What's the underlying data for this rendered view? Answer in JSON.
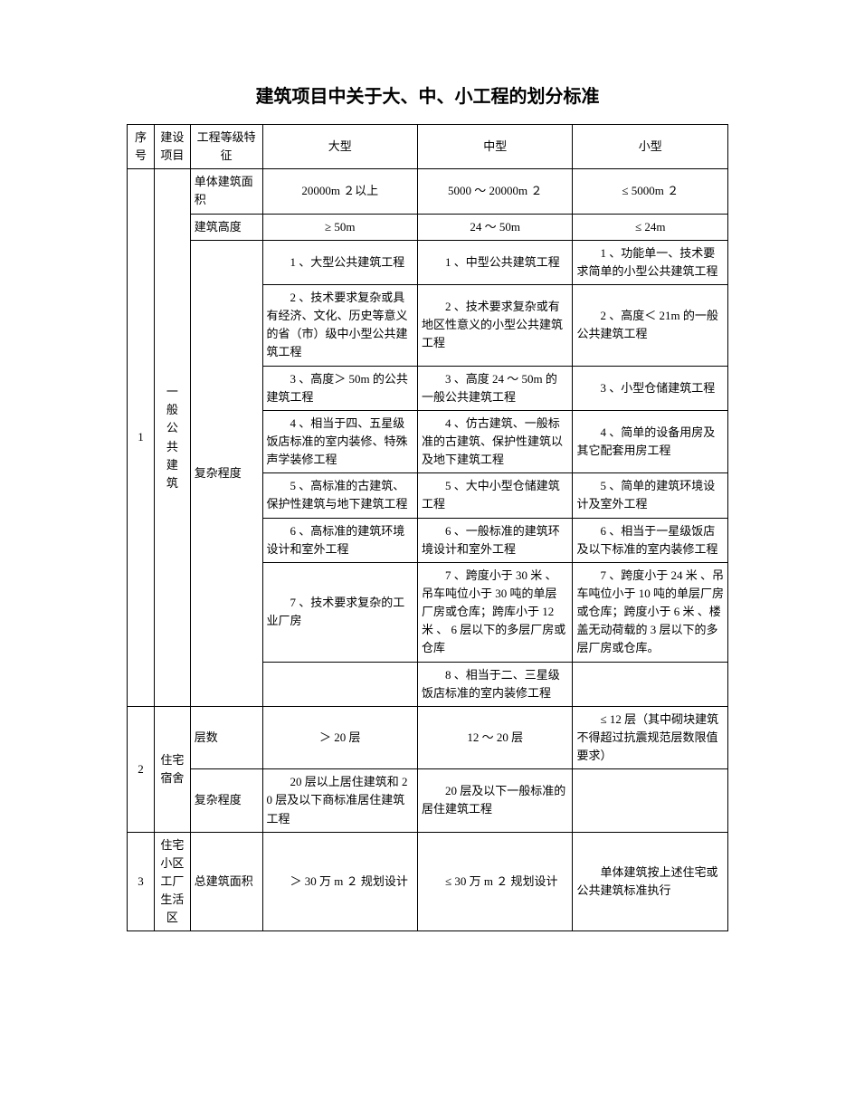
{
  "title": "建筑项目中关于大、中、小工程的划分标准",
  "colors": {
    "text": "#000000",
    "border": "#000000",
    "bg": "#ffffff"
  },
  "header": {
    "seq": "序号",
    "project": "建设项目",
    "feature": "工程等级特征",
    "large": "大型",
    "medium": "中型",
    "small": "小型"
  },
  "rows": [
    {
      "seq": "1",
      "project": "一\n般\n公\n共\n建\n筑",
      "feature": "单体建筑面积",
      "large": "20000m ２以上",
      "medium": "5000 ～ 20000m ２",
      "small": "≤ 5000m ２"
    },
    {
      "feature": "建筑高度",
      "large": "≥ 50m",
      "medium": "24 ～ 50m",
      "small": "≤ 24m"
    },
    {
      "feature": "复杂程度",
      "large": "　　1 、大型公共建筑工程",
      "medium": "　　1 、中型公共建筑工程",
      "small": "　　1 、功能单一、技术要求简单的小型公共建筑工程"
    },
    {
      "large": "　　2 、技术要求复杂或具有经济、文化、历史等意义的省（市）级中小型公共建筑工程",
      "medium": "　　2 、技术要求复杂或有地区性意义的小型公共建筑工程",
      "small": "　　2 、高度＜ 21m 的一般公共建筑工程"
    },
    {
      "large": "　　3 、高度＞ 50m 的公共建筑工程",
      "medium": "　　3 、高度 24 ～ 50m 的一般公共建筑工程",
      "small": "　　3 、小型仓储建筑工程"
    },
    {
      "large": "　　4 、相当于四、五星级饭店标准的室内装修、特殊声学装修工程",
      "medium": "　　4 、仿古建筑、一般标准的古建筑、保护性建筑以及地下建筑工程",
      "small": "　　4 、简单的设备用房及其它配套用房工程"
    },
    {
      "large": "　　5 、高标准的古建筑、保护性建筑与地下建筑工程",
      "medium": "　　5 、大中小型仓储建筑工程",
      "small": "　　5 、简单的建筑环境设计及室外工程"
    },
    {
      "large": "　　6 、高标准的建筑环境设计和室外工程",
      "medium": "　　6 、一般标准的建筑环境设计和室外工程",
      "small": "　　6 、相当于一星级饭店及以下标准的室内装修工程"
    },
    {
      "large": "　　7 、技术要求复杂的工业厂房",
      "medium": "　　7 、跨度小于 30 米 、吊车吨位小于 30 吨的单层厂房或仓库；跨库小于 12 米 、 6 层以下的多层厂房或仓库",
      "small": "　　7 、跨度小于 24 米 、吊车吨位小于 10 吨的单层厂房或仓库；跨度小于 6 米 、楼盖无动荷载的 3 层以下的多层厂房或仓库。"
    },
    {
      "large": "",
      "medium": "　　8 、相当于二、三星级饭店标准的室内装修工程",
      "small": ""
    },
    {
      "seq": "2",
      "project": "住宅宿舍",
      "feature": "层数",
      "large": "＞ 20 层",
      "medium": "12 ～ 20 层",
      "small": "　　≤ 12 层（其中砌块建筑不得超过抗震规范层数限值要求）"
    },
    {
      "feature": "复杂程度",
      "large": "　　20 层以上居住建筑和 20 层及以下商标准居住建筑工程",
      "medium": "　　20 层及以下一般标准的居住建筑工程",
      "small": ""
    },
    {
      "seq": "3",
      "project": "住宅小区工厂生活区",
      "feature": "总建筑面积",
      "large": "　　＞ 30 万 m ２ 规划设计",
      "medium": "　　≤ 30 万 m ２ 规划设计",
      "small": "　　单体建筑按上述住宅或公共建筑标准执行"
    }
  ]
}
